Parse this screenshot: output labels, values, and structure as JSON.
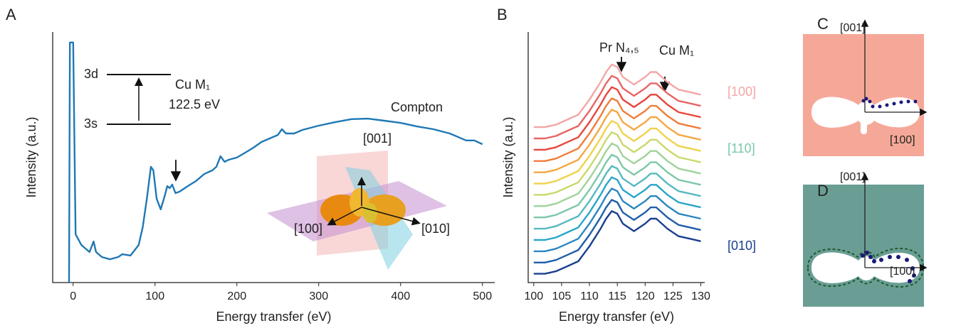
{
  "chart_data": [
    {
      "type": "line",
      "panel": "A",
      "xlabel": "Energy transfer (eV)",
      "ylabel": "Intensity (a.u.)",
      "xlim": [
        -25,
        515
      ],
      "ylim": [
        0,
        100
      ],
      "xticks": [
        0,
        100,
        200,
        300,
        400,
        500
      ],
      "x": [
        -5,
        -4,
        0,
        3,
        10,
        15,
        20,
        25,
        28,
        35,
        45,
        55,
        60,
        70,
        80,
        85,
        90,
        95,
        98,
        102,
        107,
        112,
        115,
        118,
        121,
        125,
        130,
        140,
        150,
        160,
        170,
        175,
        180,
        185,
        190,
        200,
        210,
        220,
        230,
        240,
        250,
        255,
        260,
        270,
        280,
        300,
        320,
        340,
        360,
        380,
        400,
        420,
        440,
        460,
        480,
        490,
        500
      ],
      "series": [
        {
          "color": "#1f78b4",
          "values": [
            0,
            95.8,
            95.8,
            19.3,
            15.0,
            13.6,
            12.2,
            16.4,
            12.2,
            10.2,
            9.3,
            10.2,
            11.3,
            10.8,
            15.0,
            22.1,
            33.4,
            46.2,
            44.8,
            33.4,
            29.2,
            34.8,
            38.5,
            37.7,
            39.1,
            35.7,
            36.3,
            38.5,
            40.5,
            43.3,
            44.8,
            46.2,
            50.4,
            48.2,
            49.0,
            49.9,
            51.8,
            53.8,
            56.1,
            57.5,
            58.9,
            61.2,
            59.5,
            59.5,
            60.9,
            62.6,
            64.0,
            65.2,
            65.4,
            64.6,
            63.7,
            62.3,
            61.2,
            59.5,
            56.7,
            56.7,
            55.2
          ]
        }
      ],
      "annotations": [
        {
          "text": "3d"
        },
        {
          "text": "3s"
        },
        {
          "text": "Cu M₁"
        },
        {
          "text": "122.5 eV"
        },
        {
          "text": "Compton"
        },
        {
          "text": "[001]"
        },
        {
          "text": "[100]"
        },
        {
          "text": "[010]"
        }
      ]
    },
    {
      "type": "line",
      "panel": "B",
      "xlabel": "Energy transfer (eV)",
      "ylabel": "Intensity (a.u.)",
      "xlim": [
        99,
        130.7
      ],
      "ylim": [
        0,
        100
      ],
      "xticks": [
        100,
        105,
        110,
        115,
        120,
        125,
        130
      ],
      "x": [
        100,
        102,
        104,
        106,
        108,
        110,
        112,
        113,
        114,
        115,
        116,
        118,
        120,
        121,
        122,
        124,
        126,
        128,
        130
      ],
      "series": [
        {
          "color": "#f4a6a6",
          "values": [
            62,
            62,
            63,
            65,
            67,
            73,
            80,
            84,
            87,
            86,
            82,
            79,
            82,
            84,
            84,
            80,
            77,
            76,
            75
          ]
        },
        {
          "color": "#e86464",
          "values": [
            57.5,
            57.5,
            58.5,
            60.5,
            62.5,
            68.5,
            75.5,
            79.5,
            82.5,
            81.5,
            77.5,
            74.5,
            77.5,
            79.5,
            79.5,
            75.5,
            72.5,
            71.5,
            70.5
          ]
        },
        {
          "color": "#e8453c",
          "values": [
            53,
            53,
            54,
            56,
            58,
            64,
            71,
            75,
            78,
            77,
            73,
            70,
            73,
            75,
            75,
            71,
            68,
            67,
            66
          ]
        },
        {
          "color": "#f07c3a",
          "values": [
            48.5,
            48.5,
            49.5,
            51.5,
            53.5,
            59.5,
            66.5,
            70.5,
            73.5,
            72.5,
            68.5,
            65.5,
            68.5,
            70.5,
            70.5,
            66.5,
            63.5,
            62.5,
            61.5
          ]
        },
        {
          "color": "#f5a742",
          "values": [
            44,
            44,
            45,
            47,
            49,
            55,
            62,
            66,
            69,
            68,
            64,
            61,
            64,
            66,
            66,
            62,
            59,
            58,
            57
          ]
        },
        {
          "color": "#f0d24a",
          "values": [
            39.5,
            39.5,
            40.5,
            42.5,
            44.5,
            50.5,
            57.5,
            61.5,
            64.5,
            63.5,
            59.5,
            56.5,
            59.5,
            61.5,
            61.5,
            57.5,
            54.5,
            53.5,
            52.5
          ]
        },
        {
          "color": "#c9d96a",
          "values": [
            35,
            35,
            36,
            38,
            40,
            46,
            53,
            57,
            60,
            59,
            55,
            52,
            55,
            57,
            57,
            53,
            50,
            49,
            48
          ]
        },
        {
          "color": "#9fd39a",
          "values": [
            30.5,
            30.5,
            31.5,
            33.5,
            35.5,
            41.5,
            48.5,
            52.5,
            55.5,
            54.5,
            50.5,
            47.5,
            50.5,
            52.5,
            52.5,
            48.5,
            45.5,
            44.5,
            43.5
          ]
        },
        {
          "color": "#7cc8a8",
          "values": [
            26,
            26,
            27,
            29,
            31,
            37,
            44,
            48,
            51,
            50,
            46,
            43,
            46,
            48,
            48,
            44,
            41,
            40,
            39
          ]
        },
        {
          "color": "#57b9c0",
          "values": [
            21.5,
            21.5,
            22.5,
            24.5,
            26.5,
            32.5,
            39.5,
            43.5,
            46.5,
            45.5,
            41.5,
            38.5,
            41.5,
            43.5,
            43.5,
            39.5,
            36.5,
            35.5,
            34.5
          ]
        },
        {
          "color": "#2aa5c8",
          "values": [
            17,
            17,
            18,
            20,
            22,
            28,
            35,
            39,
            42,
            41,
            37,
            34,
            37,
            39,
            39,
            35,
            32,
            31,
            30
          ]
        },
        {
          "color": "#2a86c0",
          "values": [
            12.5,
            12.5,
            13.5,
            15.5,
            17.5,
            23.5,
            30.5,
            34.5,
            37.5,
            36.5,
            32.5,
            29.5,
            32.5,
            34.5,
            34.5,
            30.5,
            27.5,
            26.5,
            25.5
          ]
        },
        {
          "color": "#1f5ea8",
          "values": [
            8,
            8,
            9,
            11,
            13,
            19,
            26,
            30,
            33,
            32,
            28,
            25,
            28,
            30,
            30,
            26,
            23,
            22,
            21
          ]
        },
        {
          "color": "#1a3f8f",
          "values": [
            3.5,
            3.5,
            4.5,
            6.5,
            8.5,
            14.5,
            21.5,
            25.5,
            28.5,
            27.5,
            23.5,
            20.5,
            23.5,
            25.5,
            25.5,
            21.5,
            18.5,
            17.5,
            16.5
          ]
        }
      ],
      "annotations": [
        {
          "text": "Pr N₄,₅"
        },
        {
          "text": "Cu M₁"
        },
        {
          "text": "[100]",
          "color": "#f4a6a6"
        },
        {
          "text": "[110]",
          "color": "#7cc8a8"
        },
        {
          "text": "[010]",
          "color": "#1a3f8f"
        }
      ]
    }
  ],
  "diagrams": [
    {
      "panel": "C",
      "labels": [
        "[001]",
        "[100]"
      ]
    },
    {
      "panel": "D",
      "labels": [
        "[001]",
        "[100]"
      ]
    }
  ]
}
